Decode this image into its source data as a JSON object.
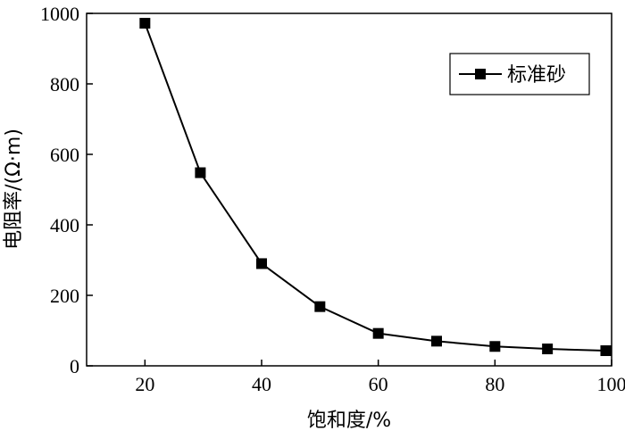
{
  "chart_data": {
    "type": "line",
    "xlabel": "饱和度/%",
    "ylabel": "电阻率/(Ω·m)",
    "xlim": [
      10,
      100
    ],
    "ylim": [
      0,
      1000
    ],
    "xticks": [
      20,
      40,
      60,
      80,
      100
    ],
    "yticks": [
      0,
      200,
      400,
      600,
      800,
      1000
    ],
    "legend_position": "top-right",
    "grid": false,
    "series": [
      {
        "name": "标准砂",
        "marker": "square",
        "color": "#000000",
        "x": [
          20,
          29.5,
          40,
          50,
          60,
          70,
          80,
          89,
          99
        ],
        "y": [
          972,
          548,
          290,
          168,
          92,
          70,
          55,
          48,
          43
        ]
      }
    ]
  }
}
